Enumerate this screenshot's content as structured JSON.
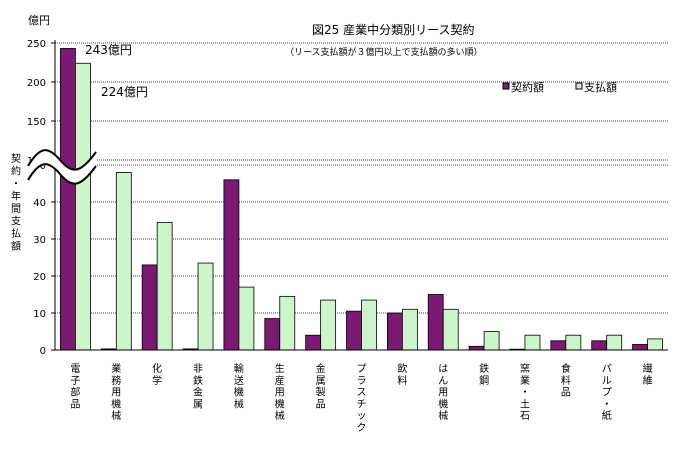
{
  "chart_data": {
    "type": "bar",
    "title": "図25  産業中分類別リース契約",
    "subtitle": "（リース支払額が３億円以上で支払額の多い順）",
    "unit_label": "億円",
    "ylabel": "契約・年間支払額",
    "categories": [
      "電子部品",
      "業務用機械",
      "化学",
      "非鉄金属",
      "輸送機械",
      "生産用機械",
      "金属製品",
      "プラスチック",
      "飲料",
      "はん用機械",
      "鉄鋼",
      "窯業・土石",
      "食料品",
      "パルプ・紙",
      "繊維"
    ],
    "series": [
      {
        "name": "契約額",
        "color": "#7a1a72",
        "values": [
          243,
          0.3,
          23,
          0.3,
          46,
          8.5,
          4,
          10.5,
          10,
          15,
          1,
          0.2,
          2.5,
          2.5,
          1.5
        ]
      },
      {
        "name": "支払額",
        "color": "#ccf5cc",
        "values": [
          224,
          48,
          34.5,
          23.5,
          17,
          14.5,
          13.5,
          13.5,
          11,
          11,
          5,
          4,
          4,
          4,
          3
        ]
      }
    ],
    "yticks_lower": [
      0,
      10,
      20,
      30,
      40,
      50
    ],
    "yticks_upper": [
      100,
      150,
      200,
      250
    ],
    "ylim": [
      0,
      250
    ],
    "axis_break": true,
    "grid": true,
    "legend_position": "top-right",
    "annotations": [
      "243億円",
      "224億円"
    ]
  }
}
